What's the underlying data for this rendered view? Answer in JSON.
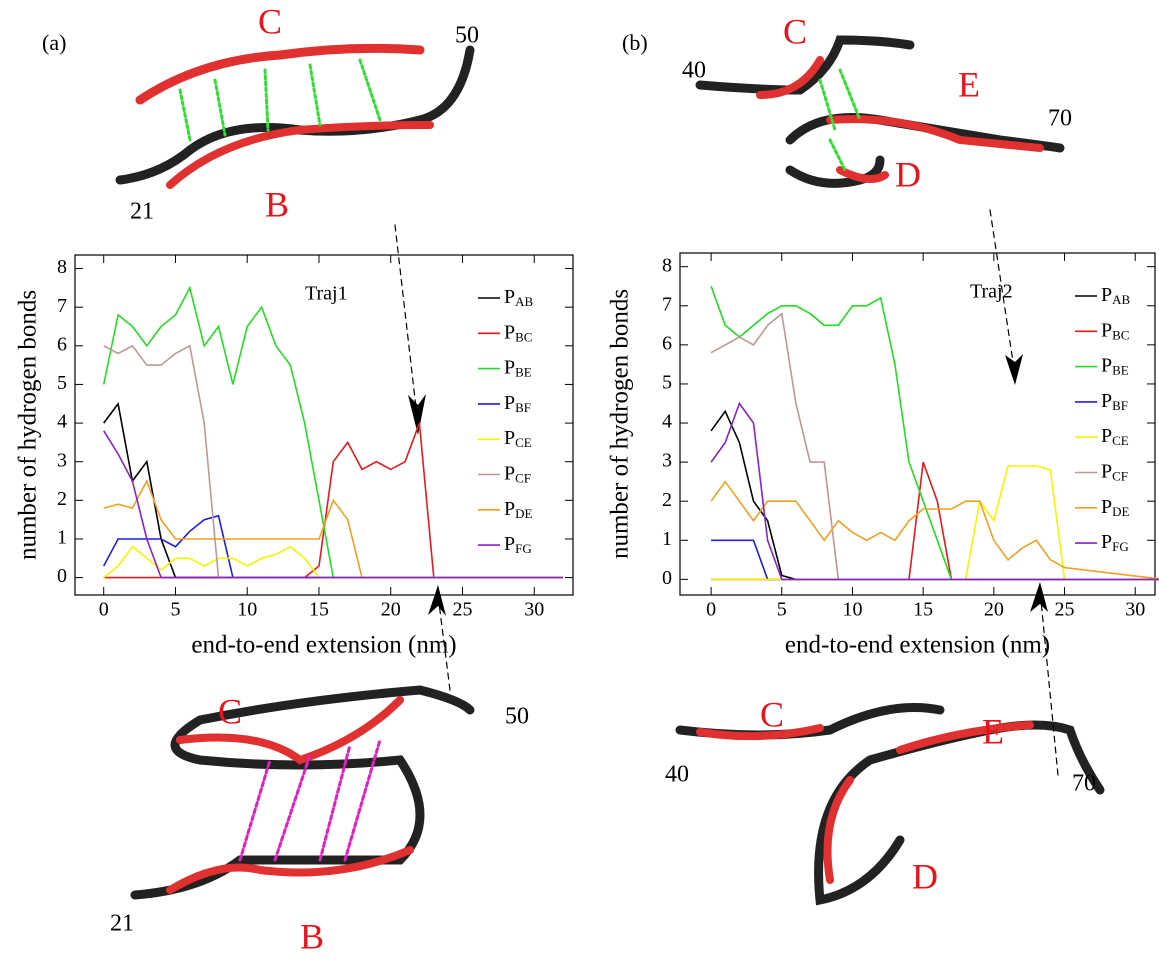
{
  "chart_data": [
    {
      "type": "line",
      "xlabel": "end-to-end extension (nm)",
      "ylabel": "number of hydrogen bonds",
      "annotation": "Traj1",
      "xlim": [
        -2,
        32.7
      ],
      "ylim": [
        -0.45,
        8.35
      ],
      "xticks": [
        0,
        5,
        10,
        15,
        20,
        25,
        30
      ],
      "yticks": [
        0,
        1,
        2,
        3,
        4,
        5,
        6,
        7,
        8
      ],
      "x": [
        0,
        1,
        2,
        3,
        4,
        5,
        6,
        7,
        8,
        9,
        10,
        11,
        12,
        13,
        14,
        15,
        16,
        17,
        18,
        19,
        20,
        21,
        22,
        23,
        24,
        25,
        32
      ],
      "series": [
        {
          "name": "PAB",
          "color": "#000000",
          "values": [
            4,
            4.5,
            2.5,
            3,
            1,
            0,
            0,
            0,
            0,
            0,
            0,
            0,
            0,
            0,
            0,
            0,
            0,
            0,
            0,
            0,
            0,
            0,
            0,
            0,
            0,
            0,
            0
          ]
        },
        {
          "name": "PBC",
          "color": "#e41a1c",
          "values": [
            0,
            0,
            0,
            0,
            0,
            0,
            0,
            0,
            0,
            0,
            0,
            0,
            0,
            0,
            0,
            0.3,
            3,
            3.5,
            2.8,
            3,
            2.8,
            3,
            4,
            0,
            0,
            0,
            0
          ]
        },
        {
          "name": "PBE",
          "color": "#22dd22",
          "values": [
            5,
            6.8,
            6.5,
            6,
            6.5,
            6.8,
            7.5,
            6,
            6.5,
            5,
            6.5,
            7,
            6,
            5.5,
            4,
            2,
            0,
            0,
            0,
            0,
            0,
            0,
            0,
            0,
            0,
            0,
            0
          ]
        },
        {
          "name": "PBF",
          "color": "#1f1fdd",
          "values": [
            0.3,
            1,
            1,
            1,
            1,
            0.8,
            1.2,
            1.5,
            1.6,
            0,
            0,
            0,
            0,
            0,
            0,
            0,
            0,
            0,
            0,
            0,
            0,
            0,
            0,
            0,
            0,
            0,
            0
          ]
        },
        {
          "name": "PCE",
          "color": "#f5f500",
          "values": [
            0,
            0.3,
            0.8,
            0.5,
            0.2,
            0.5,
            0.5,
            0.3,
            0.5,
            0.5,
            0.3,
            0.5,
            0.6,
            0.8,
            0.5,
            0,
            0,
            0,
            0,
            0,
            0,
            0,
            0,
            0,
            0,
            0,
            0
          ]
        },
        {
          "name": "PCF",
          "color": "#bc9a94",
          "values": [
            6,
            5.8,
            6,
            5.5,
            5.5,
            5.8,
            6,
            4,
            0,
            0,
            0,
            0,
            0,
            0,
            0,
            0,
            0,
            0,
            0,
            0,
            0,
            0,
            0,
            0,
            0,
            0,
            0
          ]
        },
        {
          "name": "PDE",
          "color": "#f0a020",
          "values": [
            1.8,
            1.9,
            1.8,
            2.5,
            1.5,
            1,
            1,
            1,
            1,
            1,
            1,
            1,
            1,
            1,
            1,
            1,
            2,
            1.5,
            0,
            0,
            0,
            0,
            0,
            0,
            0,
            0,
            0
          ]
        },
        {
          "name": "PFG",
          "color": "#8a22c8",
          "values": [
            3.8,
            3.2,
            2.5,
            1,
            0,
            0,
            0,
            0,
            0,
            0,
            0,
            0,
            0,
            0,
            0,
            0,
            0,
            0,
            0,
            0,
            0,
            0,
            0,
            0,
            0,
            0,
            0
          ]
        }
      ]
    },
    {
      "type": "line",
      "xlabel": "end-to-end extension (nm)",
      "ylabel": "number of hydrogen bonds",
      "annotation": "Traj2",
      "xlim": [
        -2.2,
        31.4
      ],
      "ylim": [
        -0.4,
        8.35
      ],
      "xticks": [
        0,
        5,
        10,
        15,
        20,
        25,
        30
      ],
      "yticks": [
        0,
        1,
        2,
        3,
        4,
        5,
        6,
        7,
        8
      ],
      "x": [
        0,
        1,
        2,
        3,
        4,
        5,
        6,
        7,
        8,
        9,
        10,
        11,
        12,
        13,
        14,
        15,
        16,
        17,
        18,
        19,
        20,
        21,
        22,
        23,
        24,
        25,
        32
      ],
      "series": [
        {
          "name": "PAB",
          "color": "#000000",
          "values": [
            3.8,
            4.3,
            3.5,
            2,
            1.5,
            0.1,
            0,
            0,
            0,
            0,
            0,
            0,
            0,
            0,
            0,
            0,
            0,
            0,
            0,
            0,
            0,
            0,
            0,
            0,
            0,
            0,
            0
          ]
        },
        {
          "name": "PBC",
          "color": "#e41a1c",
          "values": [
            0,
            0,
            0,
            0,
            0,
            0,
            0,
            0,
            0,
            0,
            0,
            0,
            0,
            0,
            0,
            3,
            2,
            0,
            0,
            0,
            0,
            0,
            0,
            0,
            0,
            0,
            0
          ]
        },
        {
          "name": "PBE",
          "color": "#22dd22",
          "values": [
            7.5,
            6.5,
            6.2,
            6.5,
            6.8,
            7,
            7,
            6.8,
            6.5,
            6.5,
            7,
            7,
            7.2,
            5.5,
            3,
            2,
            1,
            0,
            0,
            0,
            0,
            0,
            0,
            0,
            0,
            0,
            0
          ]
        },
        {
          "name": "PBF",
          "color": "#1f1fdd",
          "values": [
            1,
            1,
            1,
            1,
            0,
            0,
            0,
            0,
            0,
            0,
            0,
            0,
            0,
            0,
            0,
            0,
            0,
            0,
            0,
            0,
            0,
            0,
            0,
            0,
            0,
            0,
            0
          ]
        },
        {
          "name": "PCE",
          "color": "#f5f500",
          "values": [
            0,
            0,
            0,
            0,
            0,
            0,
            0,
            0,
            0,
            0,
            0,
            0,
            0,
            0,
            0,
            0,
            0,
            0,
            0,
            2,
            1.5,
            2.9,
            2.9,
            2.9,
            2.8,
            0,
            0
          ]
        },
        {
          "name": "PCF",
          "color": "#bc9a94",
          "values": [
            5.8,
            6,
            6.2,
            6,
            6.5,
            6.8,
            4.5,
            3,
            3,
            0,
            0,
            0,
            0,
            0,
            0,
            0,
            0,
            0,
            0,
            0,
            0,
            0,
            0,
            0,
            0,
            0,
            0
          ]
        },
        {
          "name": "PDE",
          "color": "#f0a020",
          "values": [
            2,
            2.5,
            2,
            1.5,
            2,
            2,
            2,
            1.5,
            1,
            1.5,
            1.2,
            1,
            1.2,
            1,
            1.5,
            1.8,
            1.8,
            1.8,
            2,
            2,
            1,
            0.5,
            0.8,
            1,
            0.5,
            0.3,
            0
          ]
        },
        {
          "name": "PFG",
          "color": "#8a22c8",
          "values": [
            3,
            3.5,
            4.5,
            4,
            1,
            0,
            0,
            0,
            0,
            0,
            0,
            0,
            0,
            0,
            0,
            0,
            0,
            0,
            0,
            0,
            0,
            0,
            0,
            0,
            0,
            0,
            0
          ]
        }
      ]
    }
  ],
  "figure": {
    "panel_labels": [
      "(a)",
      "(b)"
    ],
    "structure_labels": [
      "C",
      "50",
      "21",
      "B",
      "C",
      "50",
      "21",
      "B",
      "C",
      "40",
      "E",
      "70",
      "D",
      "C",
      "40",
      "E",
      "70",
      "D"
    ]
  }
}
